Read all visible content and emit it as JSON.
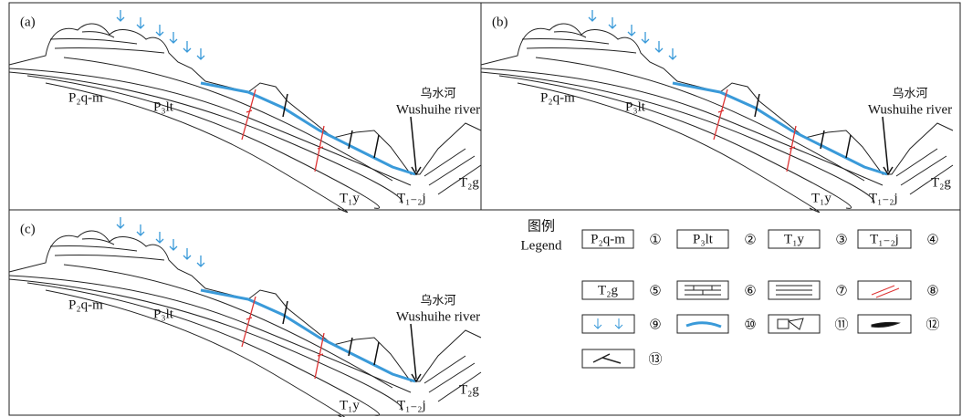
{
  "panels": [
    {
      "label": "(a)",
      "river_cn": "乌水河",
      "river_en": "Wushuihe river",
      "units": [
        "P₂q-m",
        "P₃lt",
        "T₁y",
        "T₁₋₂j",
        "T₂g"
      ]
    },
    {
      "label": "(b)",
      "river_cn": "乌水河",
      "river_en": "Wushuihe river",
      "units": [
        "P₂q-m",
        "P₃lt",
        "T₁y",
        "T₁₋₂j",
        "T₂g"
      ]
    },
    {
      "label": "(c)",
      "river_cn": "乌水河",
      "river_en": "Wushuihe river",
      "units": [
        "P₂q-m",
        "P₃lt",
        "T₁y",
        "T₁₋₂j",
        "T₂g"
      ]
    }
  ],
  "legend": {
    "title_cn": "图例",
    "title_en": "Legend",
    "items": [
      {
        "label": "P₂q-m",
        "number": "①"
      },
      {
        "label": "P₃lt",
        "number": "②"
      },
      {
        "label": "T₁y",
        "number": "③"
      },
      {
        "label": "T₁₋₂j",
        "number": "④"
      },
      {
        "label": "T₂g",
        "number": "⑤"
      },
      {
        "number": "⑥"
      },
      {
        "number": "⑦"
      },
      {
        "number": "⑧"
      },
      {
        "number": "⑨"
      },
      {
        "number": "⑩"
      },
      {
        "number": "⑪"
      },
      {
        "number": "⑫"
      },
      {
        "number": "⑬"
      }
    ]
  }
}
